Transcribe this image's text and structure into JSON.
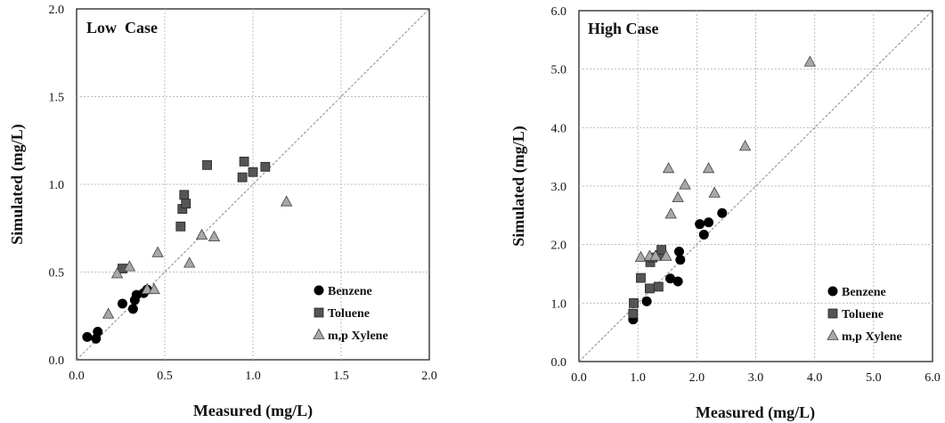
{
  "chart_data": [
    {
      "type": "scatter",
      "title": "Low  Case",
      "xlabel": "Measured (mg/L)",
      "ylabel": "Simulated (mg/L)",
      "xlim": [
        0.0,
        2.0
      ],
      "ylim": [
        0.0,
        2.0
      ],
      "xticks": [
        "0.0",
        "0.5",
        "1.0",
        "1.5",
        "2.0"
      ],
      "yticks": [
        "0.0",
        "0.5",
        "1.0",
        "1.5",
        "2.0"
      ],
      "grid": true,
      "identity_line": true,
      "legend_position": "bottom-right",
      "series": [
        {
          "name": "Benzene",
          "marker": "circle",
          "color": "#000000",
          "x": [
            0.06,
            0.11,
            0.12,
            0.26,
            0.32,
            0.33,
            0.34,
            0.38,
            0.4
          ],
          "y": [
            0.13,
            0.12,
            0.16,
            0.32,
            0.29,
            0.34,
            0.37,
            0.38,
            0.4
          ]
        },
        {
          "name": "Toluene",
          "marker": "square",
          "color": "#555555",
          "x": [
            0.26,
            0.59,
            0.6,
            0.61,
            0.62,
            0.74,
            0.94,
            0.95,
            1.0,
            1.07
          ],
          "y": [
            0.52,
            0.76,
            0.86,
            0.94,
            0.89,
            1.11,
            1.04,
            1.13,
            1.07,
            1.1
          ]
        },
        {
          "name": "m,p Xylene",
          "marker": "triangle",
          "color": "#a8a8a8",
          "x": [
            0.18,
            0.23,
            0.3,
            0.4,
            0.44,
            0.46,
            0.64,
            0.71,
            0.78,
            1.19
          ],
          "y": [
            0.26,
            0.49,
            0.53,
            0.4,
            0.4,
            0.61,
            0.55,
            0.71,
            0.7,
            0.9
          ]
        }
      ]
    },
    {
      "type": "scatter",
      "title": "High Case",
      "xlabel": "Measured (mg/L)",
      "ylabel": "Simulated (mg/L)",
      "xlim": [
        0.0,
        6.0
      ],
      "ylim": [
        0.0,
        6.0
      ],
      "xticks": [
        "0.0",
        "1.0",
        "2.0",
        "3.0",
        "4.0",
        "5.0",
        "6.0"
      ],
      "yticks": [
        "0.0",
        "1.0",
        "2.0",
        "3.0",
        "4.0",
        "5.0",
        "6.0"
      ],
      "grid": true,
      "identity_line": true,
      "legend_position": "bottom-right",
      "series": [
        {
          "name": "Benzene",
          "marker": "circle",
          "color": "#000000",
          "x": [
            0.92,
            1.15,
            1.55,
            1.68,
            1.7,
            1.72,
            2.05,
            2.12,
            2.2,
            2.43
          ],
          "y": [
            0.72,
            1.03,
            1.42,
            1.37,
            1.88,
            1.74,
            2.35,
            2.17,
            2.38,
            2.54
          ]
        },
        {
          "name": "Toluene",
          "marker": "square",
          "color": "#555555",
          "x": [
            0.92,
            0.93,
            1.05,
            1.2,
            1.21,
            1.25,
            1.35,
            1.37,
            1.4
          ],
          "y": [
            0.82,
            1.0,
            1.43,
            1.25,
            1.7,
            1.78,
            1.28,
            1.82,
            1.91
          ]
        },
        {
          "name": "m,p Xylene",
          "marker": "triangle",
          "color": "#a8a8a8",
          "x": [
            1.05,
            1.2,
            1.3,
            1.48,
            1.52,
            1.56,
            1.68,
            1.8,
            2.2,
            2.3,
            2.82,
            3.92
          ],
          "y": [
            1.78,
            1.8,
            1.8,
            1.8,
            3.3,
            2.52,
            2.8,
            3.02,
            3.3,
            2.88,
            3.68,
            5.12
          ]
        }
      ]
    }
  ]
}
